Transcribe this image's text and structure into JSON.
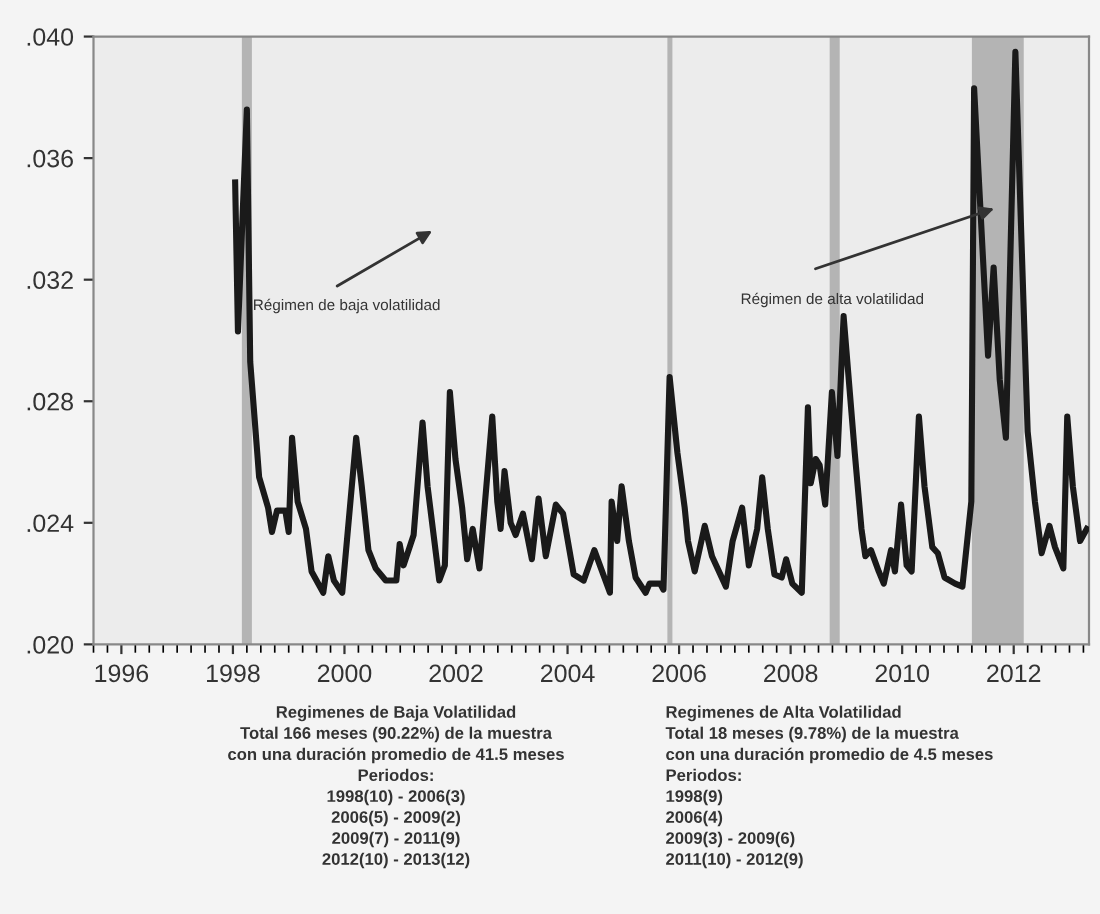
{
  "chart_data": {
    "type": "line",
    "x": [
      1998.04,
      1998.09,
      1998.25,
      1998.31,
      1998.47,
      1998.63,
      1998.7,
      1998.79,
      1998.94,
      1999.0,
      1999.06,
      1999.16,
      1999.31,
      1999.41,
      1999.62,
      1999.71,
      1999.81,
      1999.96,
      2000.21,
      2000.31,
      2000.43,
      2000.56,
      2000.74,
      2000.93,
      2000.99,
      2001.06,
      2001.24,
      2001.4,
      2001.49,
      2001.7,
      2001.8,
      2001.89,
      2001.99,
      2002.11,
      2002.2,
      2002.3,
      2002.42,
      2002.65,
      2002.74,
      2002.8,
      2002.87,
      2002.98,
      2003.07,
      2003.2,
      2003.36,
      2003.48,
      2003.61,
      2003.79,
      2003.92,
      2004.11,
      2004.29,
      2004.48,
      2004.6,
      2004.76,
      2004.79,
      2004.89,
      2004.97,
      2005.1,
      2005.22,
      2005.4,
      2005.47,
      2005.66,
      2005.72,
      2005.83,
      2005.97,
      2006.1,
      2006.16,
      2006.28,
      2006.46,
      2006.59,
      2006.84,
      2006.96,
      2007.13,
      2007.25,
      2007.4,
      2007.49,
      2007.59,
      2007.71,
      2007.84,
      2007.92,
      2008.03,
      2008.2,
      2008.31,
      2008.36,
      2008.45,
      2008.52,
      2008.62,
      2008.74,
      2008.84,
      2008.95,
      2009.15,
      2009.27,
      2009.34,
      2009.44,
      2009.58,
      2009.67,
      2009.8,
      2009.87,
      2009.98,
      2010.08,
      2010.17,
      2010.3,
      2010.4,
      2010.54,
      2010.64,
      2010.76,
      2010.95,
      2011.08,
      2011.24,
      2011.29,
      2011.54,
      2011.64,
      2011.75,
      2011.86,
      2012.03,
      2012.25,
      2012.38,
      2012.5,
      2012.64,
      2012.74,
      2012.89,
      2012.96,
      2013.06,
      2013.19,
      2013.31
    ],
    "series": [
      {
        "color": "#1a1a1a",
        "values": [
          0.0352,
          0.0303,
          0.0376,
          0.0293,
          0.0255,
          0.0245,
          0.0237,
          0.0244,
          0.0244,
          0.0237,
          0.0268,
          0.0247,
          0.0238,
          0.0224,
          0.0217,
          0.0229,
          0.0221,
          0.0217,
          0.0268,
          0.0252,
          0.0231,
          0.0225,
          0.0221,
          0.0221,
          0.0233,
          0.0226,
          0.0236,
          0.0273,
          0.0252,
          0.0221,
          0.0226,
          0.0283,
          0.0261,
          0.0245,
          0.0228,
          0.0238,
          0.0225,
          0.0275,
          0.0247,
          0.0238,
          0.0257,
          0.024,
          0.0236,
          0.0243,
          0.0228,
          0.0248,
          0.0229,
          0.0246,
          0.0243,
          0.0223,
          0.0221,
          0.0231,
          0.0225,
          0.0217,
          0.0247,
          0.0234,
          0.0252,
          0.0234,
          0.0222,
          0.0217,
          0.022,
          0.022,
          0.0218,
          0.0288,
          0.0263,
          0.0245,
          0.0234,
          0.0224,
          0.0239,
          0.0229,
          0.0219,
          0.0234,
          0.0245,
          0.0226,
          0.0238,
          0.0255,
          0.0238,
          0.0223,
          0.0222,
          0.0228,
          0.022,
          0.0217,
          0.0278,
          0.0253,
          0.0261,
          0.0259,
          0.0246,
          0.0283,
          0.0262,
          0.0308,
          0.0263,
          0.0238,
          0.0229,
          0.0231,
          0.0224,
          0.022,
          0.0231,
          0.0224,
          0.0246,
          0.0226,
          0.0224,
          0.0275,
          0.0252,
          0.0232,
          0.023,
          0.0222,
          0.022,
          0.0219,
          0.0247,
          0.0383,
          0.0295,
          0.0324,
          0.0287,
          0.0268,
          0.0395,
          0.027,
          0.0247,
          0.023,
          0.0239,
          0.0232,
          0.0225,
          0.0275,
          0.0252,
          0.0234,
          0.0238
        ]
      }
    ],
    "xlim": [
      1995.5,
      2013.35
    ],
    "xticks": [
      1996,
      1998,
      2000,
      2002,
      2004,
      2006,
      2008,
      2010,
      2012
    ],
    "ylim": [
      0.02,
      0.04
    ],
    "yticks": [
      {
        "value": 0.02,
        "label": ".020"
      },
      {
        "value": 0.024,
        "label": ".024"
      },
      {
        "value": 0.028,
        "label": ".028"
      },
      {
        "value": 0.032,
        "label": ".032"
      },
      {
        "value": 0.036,
        "label": ".036"
      },
      {
        "value": 0.04,
        "label": ".040"
      }
    ],
    "bands": [
      {
        "axis": "x",
        "from": 1998.16,
        "to": 1998.34,
        "color": "#b4b4b4"
      },
      {
        "axis": "x",
        "from": 2005.79,
        "to": 2005.88,
        "color": "#b4b4b4"
      },
      {
        "axis": "x",
        "from": 2008.7,
        "to": 2008.88,
        "color": "#b4b4b4"
      },
      {
        "axis": "x",
        "from": 2011.25,
        "to": 2012.18,
        "color": "#b4b4b4"
      }
    ],
    "annotations": [
      "Régimen de baja volatilidad",
      "Régimen de alta volatilidad",
      "Regimenes de Baja Volatilidad\nTotal 166 meses (90.22%) de la muestra\ncon una duración promedio de 41.5 meses\nPeriodos:\n1998(10) - 2006(3)\n2006(5) - 2009(2)\n2009(7) - 2011(9)\n2012(10) - 2013(12)",
      "Regimenes de Alta Volatilidad\nTotal 18 meses (9.78%) de la muestra\ncon una duración promedio de 4.5 meses\nPeriodos:\n1998(9)\n2006(4)\n2009(3) - 2009(6)\n2011(10) - 2012(9)"
    ],
    "grid": false,
    "legend": false,
    "marker": "none",
    "line_style": "solid"
  }
}
